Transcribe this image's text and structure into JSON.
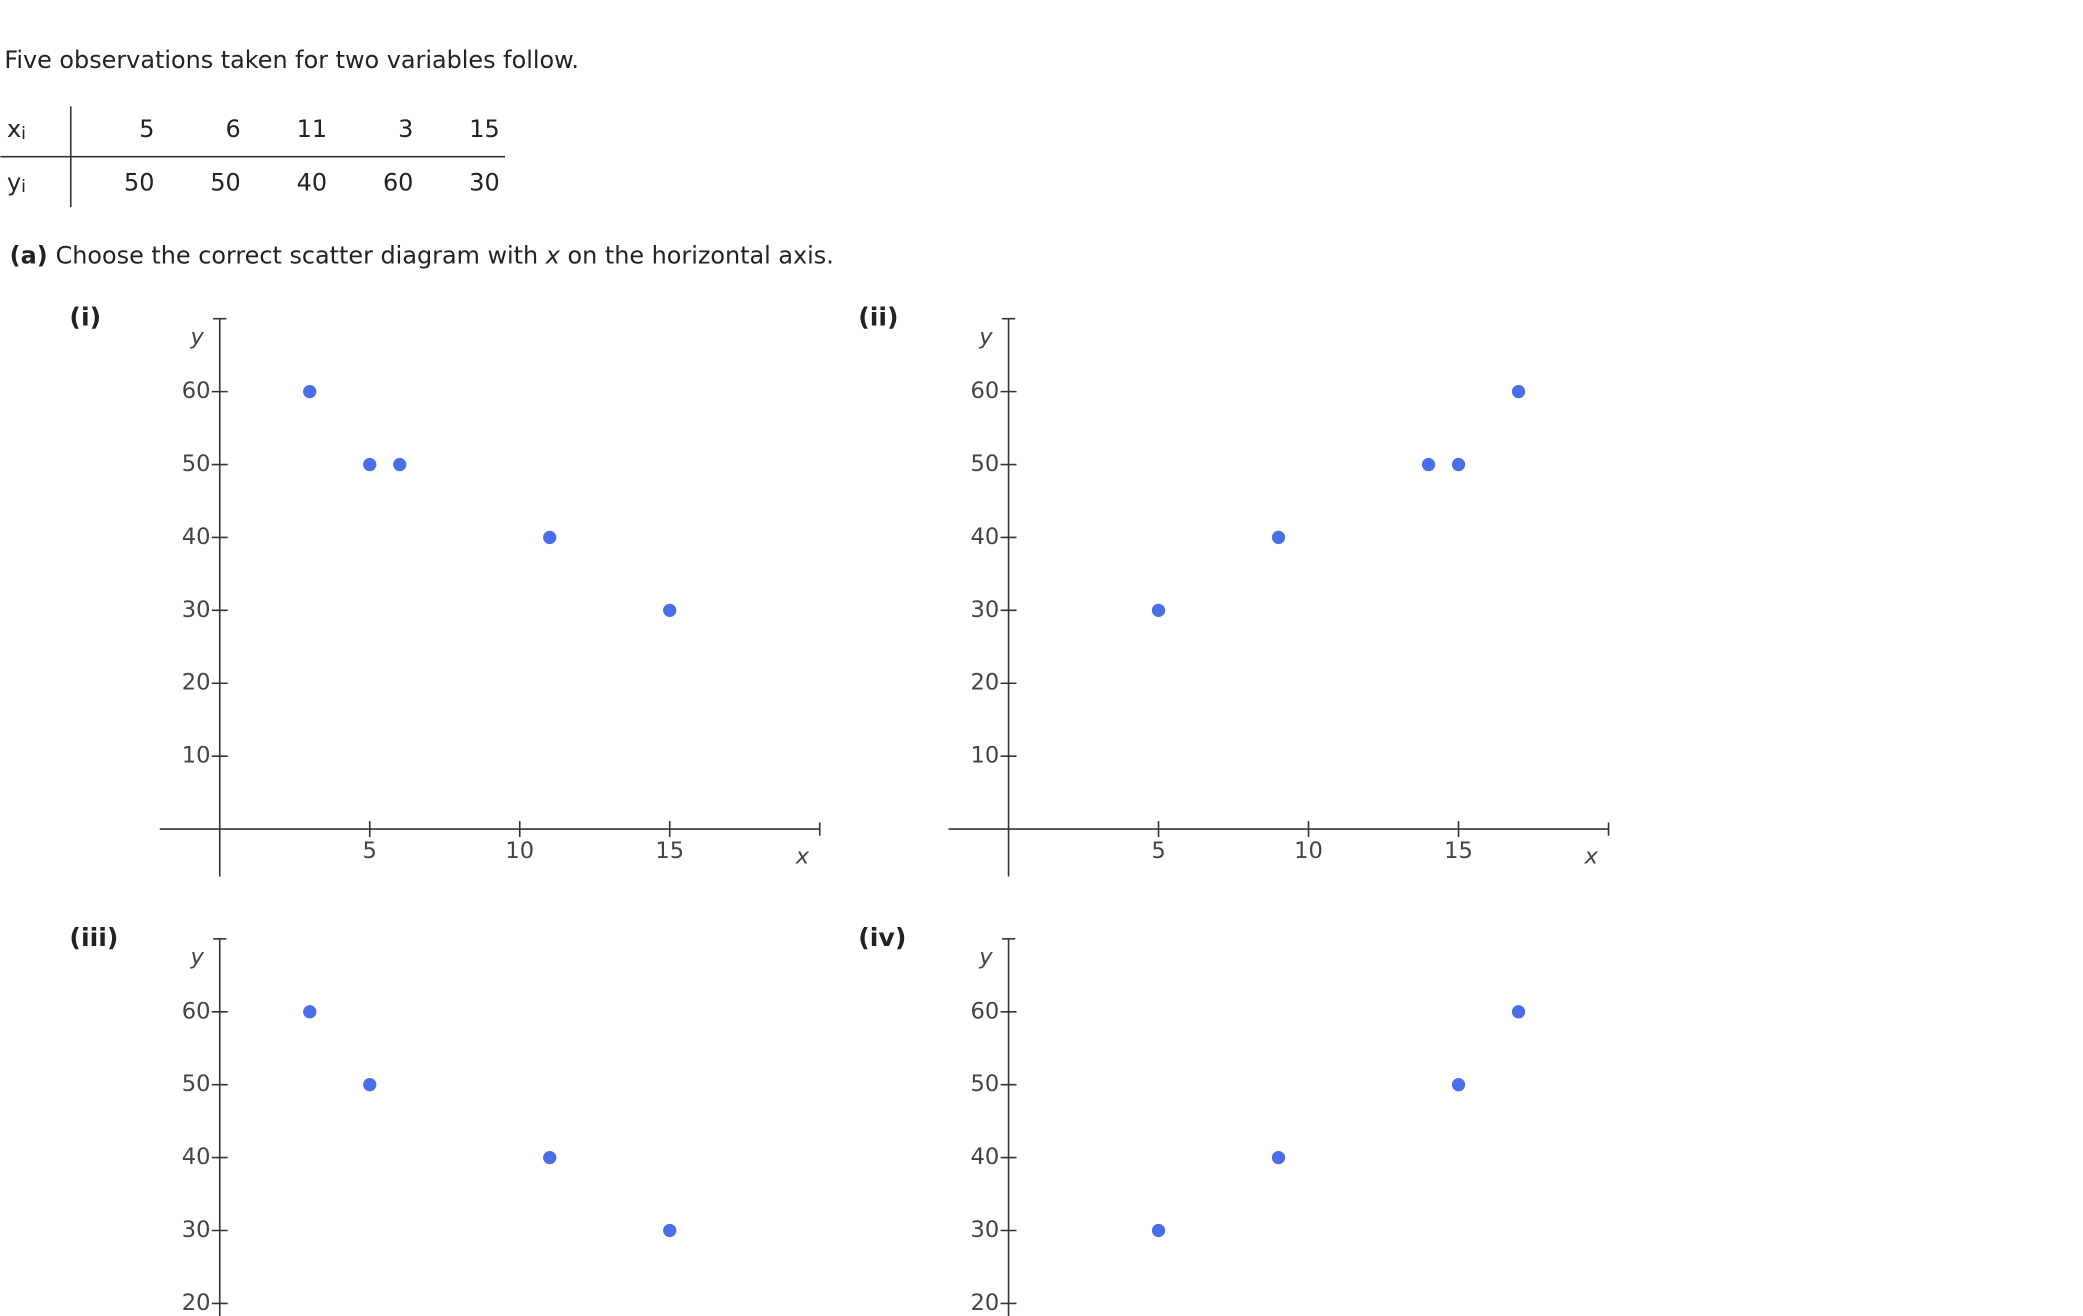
{
  "intro": "Five observations taken for two variables follow.",
  "table": {
    "rows": [
      {
        "label": "x",
        "subscript": "i",
        "cells": [
          5,
          6,
          11,
          3,
          15
        ]
      },
      {
        "label": "y",
        "subscript": "i",
        "cells": [
          50,
          50,
          40,
          60,
          30
        ]
      }
    ]
  },
  "question": {
    "part": "(a)",
    "text_before": "Choose the correct scatter diagram with ",
    "variable": "x",
    "text_after": " on the horizontal axis."
  },
  "chart_data": [
    {
      "type": "scatter",
      "title": "(i)",
      "x_label": "x",
      "y_label": "y",
      "xlim": [
        -2,
        20
      ],
      "ylim": [
        -6.5,
        70
      ],
      "xticks": [
        5,
        10,
        15
      ],
      "yticks": [
        10,
        20,
        30,
        40,
        50,
        60
      ],
      "x": [
        3,
        5,
        6,
        11,
        15
      ],
      "series": [
        {
          "color": "#4a6ee8",
          "values": [
            60,
            50,
            50,
            40,
            30
          ]
        }
      ]
    },
    {
      "type": "scatter",
      "title": "(ii)",
      "x_label": "x",
      "y_label": "y",
      "xlim": [
        -2,
        20
      ],
      "ylim": [
        -6.5,
        70
      ],
      "xticks": [
        5,
        10,
        15
      ],
      "yticks": [
        10,
        20,
        30,
        40,
        50,
        60
      ],
      "x": [
        5,
        9,
        14,
        15,
        17
      ],
      "series": [
        {
          "color": "#4a6ee8",
          "values": [
            30,
            40,
            50,
            50,
            60
          ]
        }
      ]
    },
    {
      "type": "scatter",
      "title": "(iii)",
      "y_label": "y",
      "xlim": [
        -2,
        20
      ],
      "ylim": [
        -6.5,
        70
      ],
      "yticks": [
        20,
        30,
        40,
        50,
        60
      ],
      "x": [
        3,
        5,
        11,
        15
      ],
      "series": [
        {
          "color": "#4a6ee8",
          "values": [
            60,
            50,
            40,
            30
          ]
        }
      ]
    },
    {
      "type": "scatter",
      "title": "(iv)",
      "y_label": "y",
      "xlim": [
        -2,
        20
      ],
      "ylim": [
        -6.5,
        70
      ],
      "yticks": [
        20,
        30,
        40,
        50,
        60
      ],
      "x": [
        5,
        9,
        15,
        17
      ],
      "series": [
        {
          "color": "#4a6ee8",
          "values": [
            30,
            40,
            50,
            60
          ]
        }
      ]
    }
  ]
}
